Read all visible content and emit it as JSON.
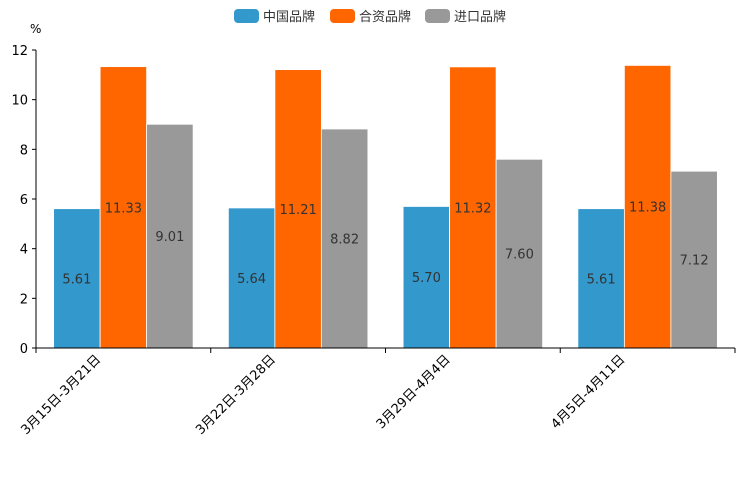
{
  "chart_data": {
    "type": "bar",
    "title": "",
    "unit": "%",
    "xlabel": "",
    "ylabel": "%",
    "ylim": [
      0,
      12
    ],
    "yticks": [
      0,
      2,
      4,
      6,
      8,
      10,
      12
    ],
    "ytick_labels": [
      "0",
      "2",
      "4",
      "6",
      "8",
      "10",
      "12"
    ],
    "grid": false,
    "legend_position": "top-center",
    "categories": [
      "3月15日-3月21日",
      "3月22日-3月28日",
      "3月29日-4月4日",
      "4月5日-4月11日"
    ],
    "series": [
      {
        "name": "中国品牌",
        "color": "#3398CC",
        "values": [
          5.61,
          5.64,
          5.7,
          5.61
        ],
        "labels": [
          "5.61",
          "5.64",
          "5.70",
          "5.61"
        ]
      },
      {
        "name": "合资品牌",
        "color": "#FF6600",
        "values": [
          11.33,
          11.21,
          11.32,
          11.38
        ],
        "labels": [
          "11.33",
          "11.21",
          "11.32",
          "11.38"
        ]
      },
      {
        "name": "进口品牌",
        "color": "#999999",
        "values": [
          9.01,
          8.82,
          7.6,
          7.12
        ],
        "labels": [
          "9.01",
          "8.82",
          "7.60",
          "7.12"
        ]
      }
    ]
  }
}
